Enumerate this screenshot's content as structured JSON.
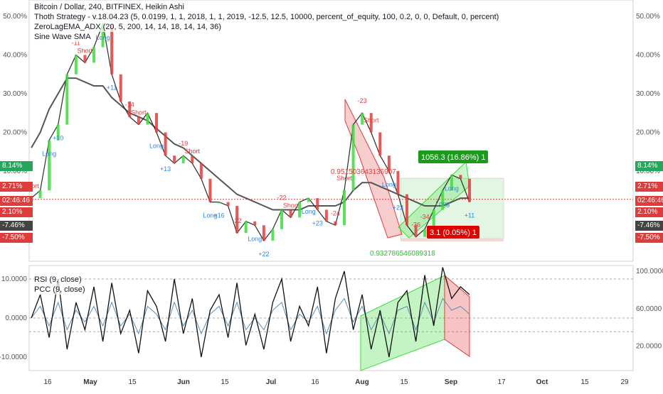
{
  "colors": {
    "green": "#26a65b",
    "lime": "#3cdc3c",
    "red": "#e03c3c",
    "darkred": "#b71c1c",
    "gray_ma": "#555555",
    "blue_long": "#2e86de",
    "profit_box": "#e3f5e3",
    "loss_box": "#f6d6d6",
    "rsi_line": "#111111",
    "pcc_line": "#5b8db0"
  },
  "legend": {
    "line1": "Bitcoin / Dollar, 240, BITFINEX, Heikin Ashi",
    "line2": "Thoth Strategy - v.18.04.23 (5, 0.0199, 1, 1, 2018, 1, 1, 2019, -12.5, 12.5, 10000, percent_of_equity, 100, 0.2, 0, 0, Default, 0, percent)",
    "line3": "ZeroLagEMA_ADX (20, 5, 200, 14, 14, 18, 14, 14, 36)",
    "line4": "Sine Wave SMA",
    "osc1": "RSI (9, close)",
    "osc2": "PCC (9, close)"
  },
  "price_axis": {
    "ticks": [
      "50.00%",
      "40.00%",
      "30.00%",
      "20.00%",
      "10.00%"
    ]
  },
  "price_tags_left": [
    {
      "label": "8.14%",
      "color": "#26a65b"
    },
    {
      "label": "2.71%",
      "color": "#e03c3c"
    },
    {
      "label": "02:46:46",
      "color": "#e03c3c"
    },
    {
      "label": "2.10%",
      "color": "#e03c3c"
    },
    {
      "label": "-7.46%",
      "color": "#444444"
    },
    {
      "label": "-7.50%",
      "color": "#e03c3c"
    }
  ],
  "price_tags_right": [
    {
      "label": "8.14%",
      "color": "#26a65b"
    },
    {
      "label": "2.71%",
      "color": "#e03c3c"
    },
    {
      "label": "02:46:46",
      "color": "#e03c3c"
    },
    {
      "label": "2.10%",
      "color": "#e03c3c"
    },
    {
      "label": "-7.46%",
      "color": "#444444"
    },
    {
      "label": "-7.50%",
      "color": "#e03c3c"
    }
  ],
  "osc_axis": {
    "right_ticks": [
      "100.0000",
      "60.0000",
      "20.0000"
    ],
    "left_ticks": [
      "10.0000",
      "0.0000",
      "-10.0000"
    ]
  },
  "time_axis": [
    "16",
    "May",
    "15",
    "Jun",
    "15",
    "Jul",
    "16",
    "Aug",
    "15",
    "Sep",
    "17",
    "Oct",
    "15",
    "29"
  ],
  "signals": [
    {
      "text": "Short",
      "kind": "short"
    },
    {
      "text": "Long",
      "kind": "long"
    },
    {
      "text": "+10",
      "kind": "long"
    },
    {
      "text": "-11",
      "kind": "short"
    },
    {
      "text": "Short",
      "kind": "short"
    },
    {
      "text": "Long",
      "kind": "long"
    },
    {
      "text": "+11",
      "kind": "long"
    },
    {
      "text": "-14",
      "kind": "short"
    },
    {
      "text": "Short",
      "kind": "short"
    },
    {
      "text": "Long",
      "kind": "long"
    },
    {
      "text": "+13",
      "kind": "long"
    },
    {
      "text": "-19",
      "kind": "short"
    },
    {
      "text": "Short",
      "kind": "short"
    },
    {
      "text": "Long",
      "kind": "long"
    },
    {
      "text": "+16",
      "kind": "long"
    },
    {
      "text": "-22",
      "kind": "short"
    },
    {
      "text": "Long",
      "kind": "long"
    },
    {
      "text": "+22",
      "kind": "long"
    },
    {
      "text": "-22",
      "kind": "short"
    },
    {
      "text": "Short",
      "kind": "short"
    },
    {
      "text": "Long",
      "kind": "long"
    },
    {
      "text": "+23",
      "kind": "long"
    },
    {
      "text": "-24",
      "kind": "short"
    },
    {
      "text": "Short",
      "kind": "short"
    },
    {
      "text": "-23",
      "kind": "short"
    },
    {
      "text": "Short",
      "kind": "short"
    },
    {
      "text": "Long",
      "kind": "long"
    },
    {
      "text": "+23",
      "kind": "long"
    },
    {
      "text": "-36",
      "kind": "short"
    },
    {
      "text": "-34",
      "kind": "short"
    },
    {
      "text": "Long",
      "kind": "long"
    },
    {
      "text": "Long",
      "kind": "long"
    },
    {
      "text": "+11",
      "kind": "long"
    }
  ],
  "annotations": {
    "red_value": "0.951503643136907",
    "green_value": "0.932786546089318",
    "profit_label": "1056.3 (16.86%) 1",
    "loss_label": "3.1 (0.05%) 1"
  },
  "chart_data": [
    {
      "type": "line",
      "title": "Bitcoin / Dollar, 240, BITFINEX, Heikin Ashi",
      "y_unit": "%",
      "ylim": [
        -10,
        52
      ],
      "x_ticks": [
        "16",
        "May",
        "15",
        "Jun",
        "15",
        "Jul",
        "16",
        "Aug",
        "15",
        "Sep",
        "17",
        "Oct",
        "15",
        "29"
      ],
      "series": [
        {
          "name": "price",
          "values": [
            3,
            5,
            18,
            22,
            35,
            40,
            38,
            42,
            48,
            35,
            28,
            24,
            22,
            25,
            20,
            14,
            12,
            14,
            12,
            8,
            2,
            2,
            1,
            -6,
            -3,
            -4,
            -8,
            -5,
            0,
            -2,
            2,
            3,
            0,
            -3,
            -4,
            5,
            22,
            25,
            20,
            14,
            10,
            4,
            -4,
            -7,
            -5,
            0,
            5,
            9,
            8,
            2
          ]
        },
        {
          "name": "moving average",
          "values": [
            16,
            20,
            26,
            30,
            34,
            34,
            33,
            32,
            32,
            29,
            27,
            25,
            24,
            23,
            21,
            19,
            17,
            16,
            14,
            12,
            10,
            8,
            6,
            4,
            3,
            2,
            1,
            0,
            0,
            0,
            0,
            1,
            1,
            1,
            1,
            2,
            5,
            7,
            7,
            6,
            5,
            4,
            3,
            2,
            1,
            1,
            1,
            2,
            3,
            3
          ]
        }
      ],
      "levels": [
        8.14,
        2.71,
        2.1,
        -7.46,
        -7.5
      ]
    },
    {
      "type": "line",
      "ylim_left": [
        -12,
        12
      ],
      "ylim_right": [
        0,
        100
      ],
      "series": [
        {
          "name": "RSI (9, close)",
          "values": [
            0,
            6,
            -5,
            10,
            -8,
            4,
            -3,
            8,
            -6,
            9,
            -4,
            2,
            -9,
            7,
            3,
            -6,
            10,
            -4,
            5,
            -10,
            2,
            6,
            -5,
            9,
            -7,
            1,
            -8,
            4,
            10,
            -6,
            3,
            -2,
            8,
            -9,
            5,
            12,
            -3,
            6,
            -8,
            2,
            -10,
            4,
            7,
            -6,
            11,
            -2,
            13,
            5,
            8,
            6
          ]
        },
        {
          "name": "PCC (9, close)",
          "values": [
            0,
            3,
            -2,
            4,
            -3,
            2,
            -1,
            3,
            -2,
            4,
            -2,
            1,
            -4,
            3,
            1,
            -3,
            4,
            -2,
            2,
            -4,
            1,
            3,
            -2,
            4,
            -3,
            0,
            -3,
            2,
            4,
            -3,
            1,
            -1,
            3,
            -4,
            2,
            5,
            -1,
            3,
            -3,
            1,
            -4,
            2,
            3,
            -3,
            4,
            -1,
            5,
            2,
            3,
            1
          ]
        }
      ]
    }
  ]
}
